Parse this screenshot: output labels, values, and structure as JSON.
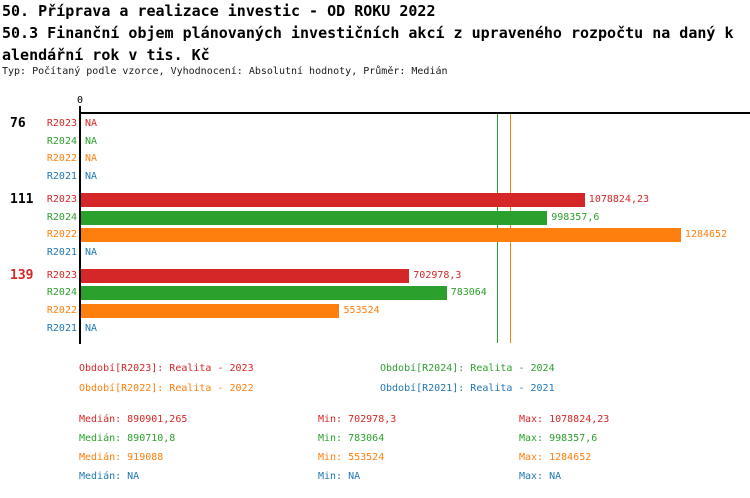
{
  "header": {
    "title": "50. Příprava a realizace investic - OD ROKU 2022",
    "subtitle_line1": "50.3 Finanční objem plánovaných investičních akcí z upraveného rozpočtu na daný k",
    "subtitle_line2": "alendářní rok v tis. Kč",
    "meta": "Typ: Počítaný podle vzorce, Vyhodnocení: Absolutní hodnoty, Průměr: Medián"
  },
  "colors": {
    "R2023": "#d62728",
    "R2024": "#2ca02c",
    "R2022": "#ff7f0e",
    "R2021": "#1f77b4",
    "axis": "#000000"
  },
  "chart_data": {
    "type": "bar",
    "orientation": "horizontal",
    "zero_tick_label": "0",
    "unit": "tis. Kč",
    "series_order": [
      "R2023",
      "R2024",
      "R2022",
      "R2021"
    ],
    "groups": [
      {
        "label": "76",
        "label_color": "#000000",
        "bars": [
          {
            "series": "R2023",
            "value": null,
            "display": "NA"
          },
          {
            "series": "R2024",
            "value": null,
            "display": "NA"
          },
          {
            "series": "R2022",
            "value": null,
            "display": "NA"
          },
          {
            "series": "R2021",
            "value": null,
            "display": "NA"
          }
        ]
      },
      {
        "label": "111",
        "label_color": "#000000",
        "bars": [
          {
            "series": "R2023",
            "value": 1078824.23,
            "display": "1078824,23"
          },
          {
            "series": "R2024",
            "value": 998357.6,
            "display": "998357,6"
          },
          {
            "series": "R2022",
            "value": 1284652,
            "display": "1284652"
          },
          {
            "series": "R2021",
            "value": null,
            "display": "NA"
          }
        ]
      },
      {
        "label": "139",
        "label_color": "#d62728",
        "bars": [
          {
            "series": "R2023",
            "value": 702978.3,
            "display": "702978,3"
          },
          {
            "series": "R2024",
            "value": 783064,
            "display": "783064"
          },
          {
            "series": "R2022",
            "value": 553524,
            "display": "553524"
          },
          {
            "series": "R2021",
            "value": null,
            "display": "NA"
          }
        ]
      }
    ],
    "median_lines": [
      {
        "series": "R2023",
        "value": 890901.265
      },
      {
        "series": "R2024",
        "value": 890710.8
      },
      {
        "series": "R2022",
        "value": 919088
      }
    ],
    "stats": {
      "R2023": {
        "median": 890901.265,
        "min": 702978.3,
        "max": 1078824.23
      },
      "R2024": {
        "median": 890710.8,
        "min": 783064,
        "max": 998357.6
      },
      "R2022": {
        "median": 919088,
        "min": 553524,
        "max": 1284652
      },
      "R2021": {
        "median": null,
        "min": null,
        "max": null
      }
    }
  },
  "legend": {
    "items": [
      {
        "series": "R2023",
        "text": "Období[R2023]: Realita - 2023"
      },
      {
        "series": "R2024",
        "text": "Období[R2024]: Realita - 2024"
      },
      {
        "series": "R2022",
        "text": "Období[R2022]: Realita - 2022"
      },
      {
        "series": "R2021",
        "text": "Období[R2021]: Realita - 2021"
      }
    ]
  },
  "stats_rows": [
    {
      "series": "R2023",
      "median": "Medián: 890901,265",
      "min": "Min: 702978,3",
      "max": "Max: 1078824,23"
    },
    {
      "series": "R2024",
      "median": "Medián: 890710,8",
      "min": "Min: 783064",
      "max": "Max: 998357,6"
    },
    {
      "series": "R2022",
      "median": "Medián: 919088",
      "min": "Min: 553524",
      "max": "Max: 1284652"
    },
    {
      "series": "R2021",
      "median": "Medián: NA",
      "min": "Min: NA",
      "max": "Max: NA"
    }
  ]
}
